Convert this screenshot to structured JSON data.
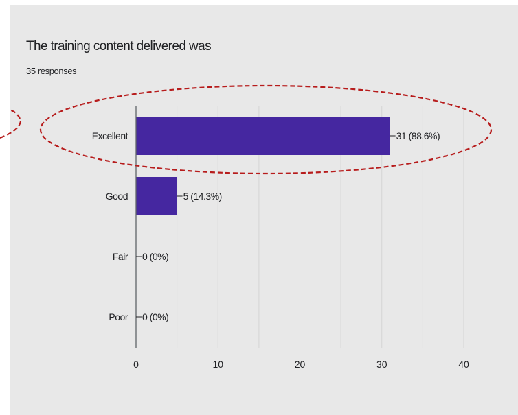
{
  "question": {
    "title": "The training content delivered was",
    "responses": "35 responses"
  },
  "colors": {
    "bar": "#4527a0",
    "highlight": "#b71c1c",
    "grid": "#d4d4d4",
    "axis": "#5f6368",
    "text": "#202124"
  },
  "chart_data": {
    "type": "bar",
    "orientation": "horizontal",
    "title": "The training content delivered was",
    "subtitle": "35 responses",
    "categories": [
      "Excellent",
      "Good",
      "Fair",
      "Poor"
    ],
    "values": [
      31,
      5,
      0,
      0
    ],
    "data_labels": [
      "31 (88.6%)",
      "5 (14.3%)",
      "0 (0%)",
      "0 (0%)"
    ],
    "xlim": [
      0,
      40
    ],
    "xticks": [
      0,
      10,
      20,
      30,
      40
    ],
    "grid": true,
    "highlighted_category": "Excellent"
  }
}
